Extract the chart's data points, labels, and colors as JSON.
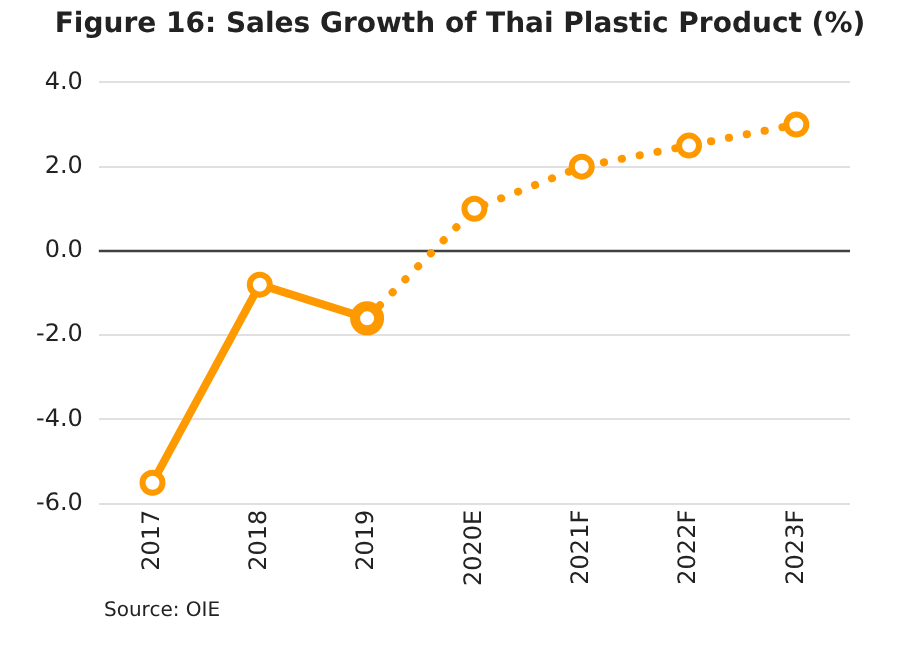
{
  "chart_data": {
    "type": "line",
    "title": "Figure 16: Sales Growth of Thai Plastic Product (%)",
    "categories": [
      "2017",
      "2018",
      "2019",
      "2020E",
      "2021F",
      "2022F",
      "2023F"
    ],
    "series": [
      {
        "color": "#ff9900",
        "values": [
          -5.5,
          -0.8,
          -1.6,
          null,
          null,
          null,
          null
        ],
        "line_style": "solid"
      },
      {
        "color": "#ff9900",
        "values": [
          null,
          null,
          -1.6,
          1.0,
          2.0,
          2.5,
          3.0
        ],
        "line_style": "dotted"
      }
    ],
    "ylim": [
      -6,
      4
    ],
    "yticks": [
      {
        "value": -6,
        "label": "-6.0"
      },
      {
        "value": -4,
        "label": "-4.0"
      },
      {
        "value": -2,
        "label": "-2.0"
      },
      {
        "value": 0,
        "label": "0.0"
      },
      {
        "value": 2,
        "label": "2.0"
      },
      {
        "value": 4,
        "label": "4.0"
      }
    ],
    "grid": "y",
    "marker": "circle",
    "legend": false,
    "ref_lines": [
      {
        "axis": "y",
        "value": 0,
        "color": "#404040"
      }
    ],
    "annotations": [
      "Source: OIE"
    ]
  }
}
